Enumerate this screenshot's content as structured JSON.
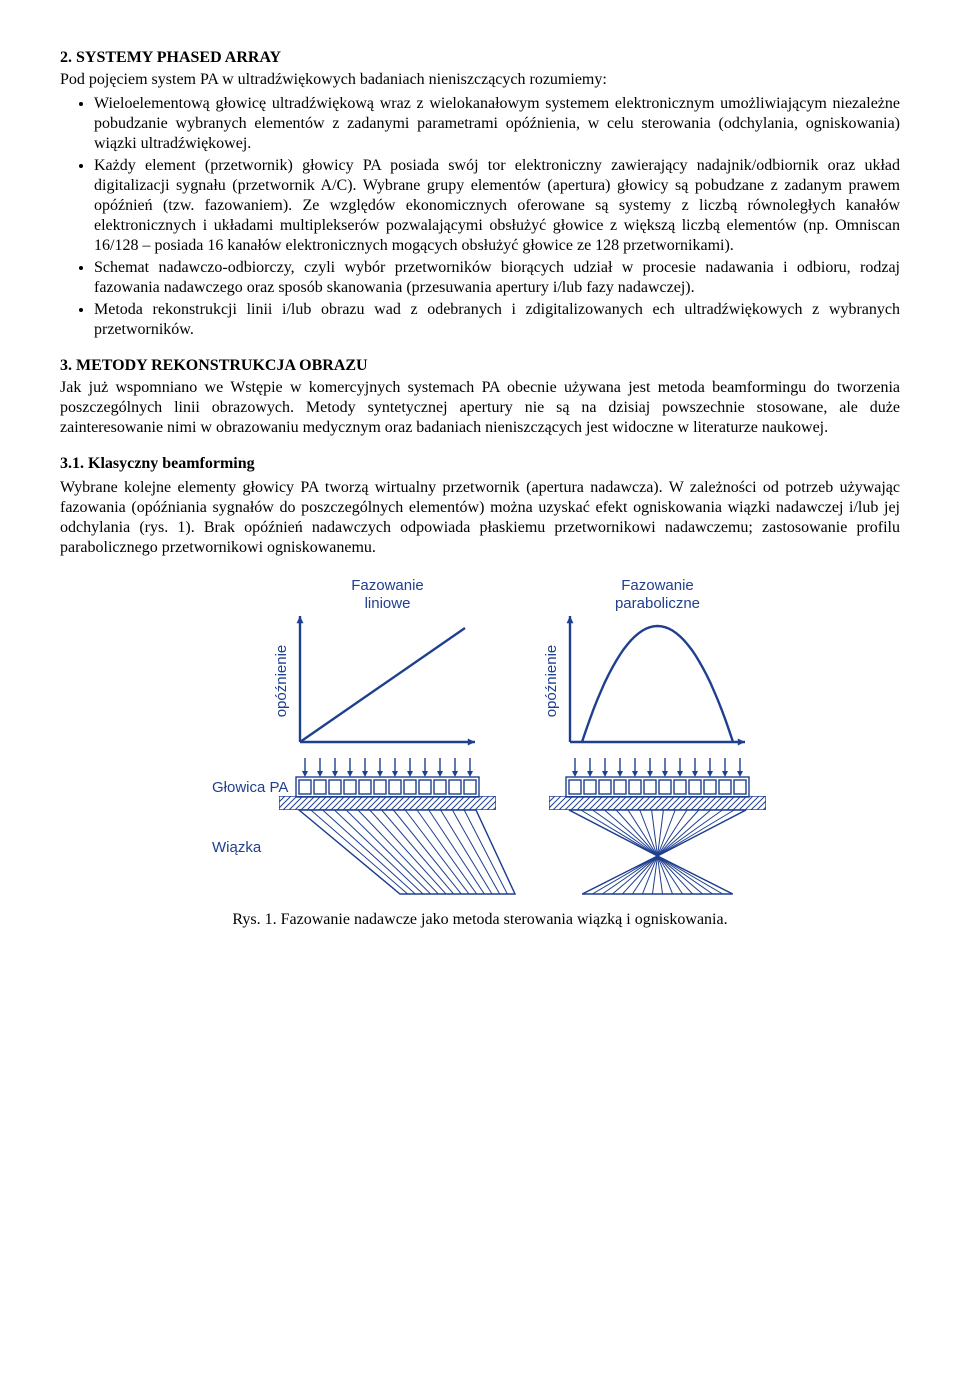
{
  "section2": {
    "heading": "2. SYSTEMY PHASED ARRAY",
    "intro": "Pod pojęciem system PA w ultradźwiękowych badaniach nieniszczących rozumiemy:",
    "bullets": [
      "Wieloelementową głowicę ultradźwiękową wraz z wielokanałowym systemem elektronicznym umożliwiającym niezależne pobudzanie wybranych elementów z zadanymi parametrami opóźnienia, w celu sterowania (odchylania, ogniskowania) wiązki ultradźwiękowej.",
      "Każdy element (przetwornik) głowicy PA posiada swój tor elektroniczny zawierający nadajnik/odbiornik oraz układ digitalizacji sygnału (przetwornik A/C). Wybrane grupy elementów (apertura) głowicy są pobudzane z zadanym prawem opóźnień (tzw. fazowaniem). Ze względów ekonomicznych oferowane są systemy z liczbą równoległych kanałów elektronicznych i układami multiplekserów pozwalającymi obsłużyć głowice z większą liczbą elementów (np. Omniscan 16/128 – posiada 16 kanałów elektronicznych mogących obsłużyć głowice ze 128 przetwornikami).",
      "Schemat nadawczo-odbiorczy, czyli wybór przetworników biorących udział w procesie nadawania i odbioru, rodzaj fazowania nadawczego oraz sposób skanowania (przesuwania apertury i/lub fazy nadawczej).",
      "Metoda rekonstrukcji linii i/lub obrazu wad z odebranych i zdigitalizowanych ech ultradźwiękowych z wybranych przetworników."
    ]
  },
  "section3": {
    "heading": "3. METODY REKONSTRUKCJA OBRAZU",
    "para": "Jak już wspomniano we Wstępie w komercyjnych systemach PA obecnie używana jest metoda beamformingu do tworzenia poszczególnych linii obrazowych. Metody syntetycznej apertury nie są na dzisiaj powszechnie stosowane, ale duże zainteresowanie nimi w obrazowaniu medycznym oraz badaniach nieniszczących jest widoczne w literaturze naukowej."
  },
  "section31": {
    "heading": "3.1. Klasyczny beamforming",
    "para": "Wybrane kolejne elementy głowicy PA tworzą wirtualny przetwornik (apertura nadawcza). W zależności od potrzeb używając fazowania (opóźniania sygnałów do poszczególnych elementów) można uzyskać efekt ogniskowania wiązki nadawczej i/lub jej odchylania (rys. 1). Brak opóźnień nadawczych odpowiada płaskiemu przetwornikowi nadawczemu; zastosowanie profilu parabolicznego przetwornikowi ogniskowanemu."
  },
  "figure": {
    "caption": "Rys. 1. Fazowanie nadawcze jako metoda sterowania wiązką i ogniskowania.",
    "labels": {
      "linear_title1": "Fazowanie",
      "linear_title2": "liniowe",
      "parab_title1": "Fazowanie",
      "parab_title2": "paraboliczne",
      "yaxis": "opóźnienie",
      "probe": "Głowica PA",
      "beam": "Wiązka"
    },
    "style": {
      "stroke": "#1f3f8f",
      "label_color": "#1f3f8f",
      "label_font": "Arial, Helvetica, sans-serif",
      "label_fontsize": 15,
      "stroke_width": 2.4,
      "thin_stroke_width": 1.4,
      "n_elements": 12,
      "element_width": 12,
      "element_gap": 3,
      "arrow_head": 8,
      "beam_lines": 15
    }
  }
}
